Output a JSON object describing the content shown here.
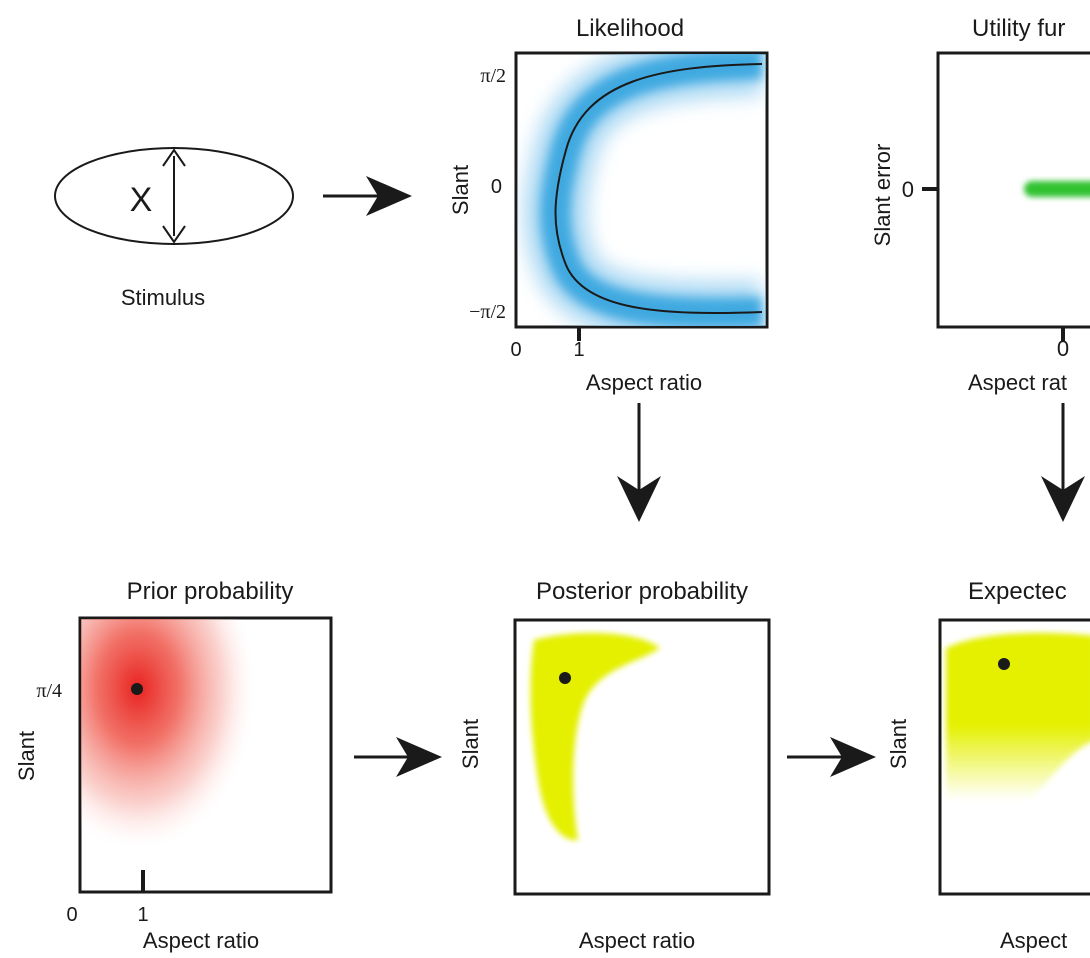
{
  "stimulus": {
    "glyph": "X",
    "caption": "Stimulus"
  },
  "likelihood": {
    "title": "Likelihood",
    "ylabel": "Slant",
    "xlabel": "Aspect ratio",
    "y_ticks": [
      "π/2",
      "0",
      "−π/2"
    ],
    "x_ticks": [
      "0",
      "1"
    ],
    "color": "#3aa7e0"
  },
  "utility": {
    "title": "Utility fur",
    "ylabel": "Slant error",
    "xlabel": "Aspect rat",
    "y_ticks": [
      "0"
    ],
    "x_ticks": [
      "0"
    ],
    "color": "#33c233"
  },
  "prior": {
    "title": "Prior probability",
    "ylabel": "Slant",
    "xlabel": "Aspect ratio",
    "y_ticks": [
      "π/4"
    ],
    "x_ticks": [
      "0",
      "1"
    ],
    "color": "#e8221f"
  },
  "posterior": {
    "title": "Posterior probability",
    "ylabel": "Slant",
    "xlabel": "Aspect ratio",
    "color": "#e4f000"
  },
  "expected": {
    "title": "Expectec",
    "ylabel": "Slant",
    "xlabel": "Aspect",
    "color": "#e4f000"
  }
}
